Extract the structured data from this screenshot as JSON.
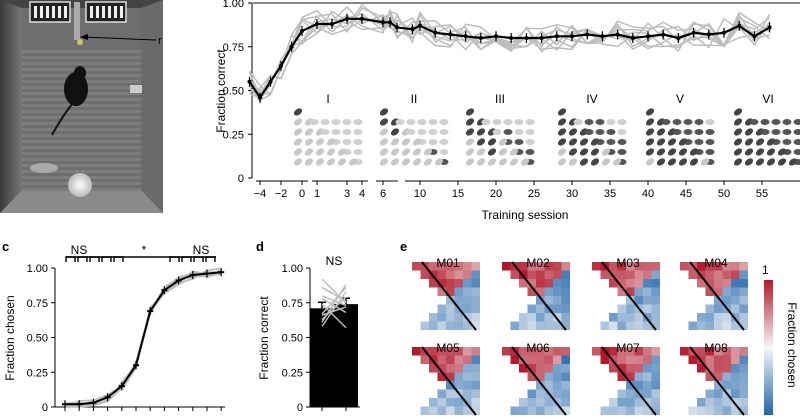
{
  "panel_labels": {
    "c": "c",
    "d": "d",
    "e": "e"
  },
  "photo": {
    "label_r": "r"
  },
  "chart_data": [
    {
      "id": "training",
      "type": "line",
      "xlabel": "Training session",
      "ylabel": "Fraction correct",
      "ylim": [
        0,
        1
      ],
      "yticks": [
        "0",
        "0.25",
        "0.50",
        "0.75",
        "1.00"
      ],
      "xticks": [
        "−4",
        "−2",
        "0",
        "1",
        "3",
        "4",
        "6",
        "10",
        "15",
        "20",
        "25",
        "30",
        "35",
        "40",
        "45",
        "50",
        "55"
      ],
      "stage_labels": [
        "I",
        "II",
        "III",
        "IV",
        "V",
        "VI"
      ],
      "mean_series": [
        {
          "x": -5,
          "y": 0.55
        },
        {
          "x": -4,
          "y": 0.46
        },
        {
          "x": -3,
          "y": 0.55
        },
        {
          "x": -2,
          "y": 0.64
        },
        {
          "x": -1,
          "y": 0.75
        },
        {
          "x": 0,
          "y": 0.84
        },
        {
          "x": 1,
          "y": 0.88
        },
        {
          "x": 2,
          "y": 0.88
        },
        {
          "x": 3,
          "y": 0.91
        },
        {
          "x": 4,
          "y": 0.91
        },
        {
          "x": 6,
          "y": 0.89
        },
        {
          "x": 7,
          "y": 0.89
        },
        {
          "x": 8,
          "y": 0.86
        },
        {
          "x": 9,
          "y": 0.85
        },
        {
          "x": 10,
          "y": 0.87
        },
        {
          "x": 12,
          "y": 0.83
        },
        {
          "x": 14,
          "y": 0.82
        },
        {
          "x": 16,
          "y": 0.81
        },
        {
          "x": 18,
          "y": 0.8
        },
        {
          "x": 20,
          "y": 0.81
        },
        {
          "x": 22,
          "y": 0.8
        },
        {
          "x": 24,
          "y": 0.8
        },
        {
          "x": 26,
          "y": 0.8
        },
        {
          "x": 28,
          "y": 0.81
        },
        {
          "x": 30,
          "y": 0.81
        },
        {
          "x": 32,
          "y": 0.82
        },
        {
          "x": 34,
          "y": 0.81
        },
        {
          "x": 36,
          "y": 0.82
        },
        {
          "x": 38,
          "y": 0.8
        },
        {
          "x": 40,
          "y": 0.81
        },
        {
          "x": 42,
          "y": 0.82
        },
        {
          "x": 44,
          "y": 0.8
        },
        {
          "x": 46,
          "y": 0.83
        },
        {
          "x": 48,
          "y": 0.82
        },
        {
          "x": 50,
          "y": 0.83
        },
        {
          "x": 52,
          "y": 0.87
        },
        {
          "x": 54,
          "y": 0.81
        },
        {
          "x": 56,
          "y": 0.86
        }
      ]
    },
    {
      "id": "psychometric",
      "type": "line",
      "ylabel": "Fraction chosen",
      "ylim": [
        0,
        1
      ],
      "yticks": [
        "0",
        "0.25",
        "0.50",
        "0.75",
        "1.00"
      ],
      "significance": [
        "NS",
        "*",
        "NS"
      ],
      "values": [
        0.02,
        0.02,
        0.03,
        0.07,
        0.15,
        0.3,
        0.69,
        0.84,
        0.91,
        0.95,
        0.96,
        0.97
      ]
    },
    {
      "id": "bar",
      "type": "bar",
      "ylabel": "Fraction correct",
      "ylim": [
        0,
        1
      ],
      "yticks": [
        "0",
        "0.25",
        "0.50",
        "0.75",
        "1.00"
      ],
      "significance": "NS",
      "values": [
        0.71,
        0.74
      ],
      "individuals": [
        [
          0.58,
          0.83
        ],
        [
          0.63,
          0.79
        ],
        [
          0.66,
          0.72
        ],
        [
          0.67,
          0.86
        ],
        [
          0.74,
          0.57
        ],
        [
          0.78,
          0.68
        ],
        [
          0.8,
          0.73
        ],
        [
          0.86,
          0.76
        ],
        [
          0.92,
          0.75
        ],
        [
          0.61,
          0.88
        ]
      ]
    },
    {
      "id": "heatmaps",
      "type": "heatmap",
      "colorbar_label": "Fraction chosen",
      "colorbar_max": "1",
      "mice": [
        "M01",
        "M02",
        "M03",
        "M04",
        "M05",
        "M06",
        "M07",
        "M08"
      ]
    }
  ]
}
